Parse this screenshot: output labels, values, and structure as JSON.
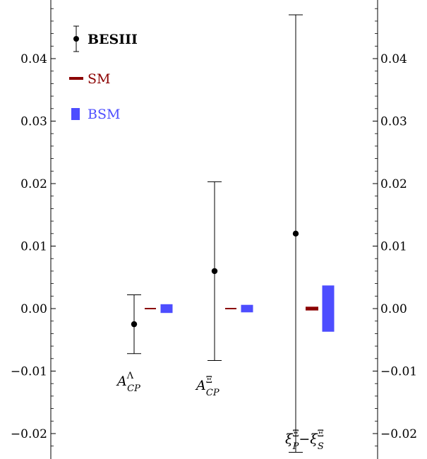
{
  "chart_data": {
    "type": "scatter",
    "ylim": [
      -0.024,
      0.048
    ],
    "yticks": [
      -0.02,
      -0.01,
      0.0,
      0.01,
      0.02,
      0.03,
      0.04
    ],
    "ytick_labels": [
      "−0.02",
      "−0.01",
      "0.00",
      "0.01",
      "0.02",
      "0.03",
      "0.04"
    ],
    "grid": false,
    "legend_position": "top-left",
    "legend": [
      {
        "key": "besiii",
        "label": "BESIII",
        "color": "#000000",
        "marker": "point-with-errorbar"
      },
      {
        "key": "sm",
        "label": "SM",
        "color": "#8b0000",
        "marker": "line"
      },
      {
        "key": "bsm",
        "label": "BSM",
        "color": "#4d4dff",
        "marker": "box"
      }
    ],
    "categories": [
      {
        "key": "acp_lambda",
        "base": "A",
        "sup": "Λ",
        "sub": "CP"
      },
      {
        "key": "acp_xi",
        "base": "A",
        "sup": "Ξ",
        "sub": "CP"
      },
      {
        "key": "xi_diff",
        "base": "ξ",
        "sup": "Ξ",
        "sub": "P",
        "base2": "ξ",
        "sup2": "Ξ",
        "sub2": "S",
        "op": "−"
      }
    ],
    "series": [
      {
        "name": "BESIII",
        "color": "#000000",
        "points": [
          {
            "category": "acp_lambda",
            "y": -0.0025,
            "low": -0.0072,
            "high": 0.0022
          },
          {
            "category": "acp_xi",
            "y": 0.006,
            "low": -0.0083,
            "high": 0.0203
          },
          {
            "category": "xi_diff",
            "y": 0.012,
            "low": -0.023,
            "high": 0.047
          }
        ]
      },
      {
        "name": "SM",
        "color": "#8b0000",
        "points": [
          {
            "category": "acp_lambda",
            "low": -5e-05,
            "high": 5e-05
          },
          {
            "category": "acp_xi",
            "low": -5e-05,
            "high": 5e-05
          },
          {
            "category": "xi_diff",
            "low": -0.0003,
            "high": 0.0003
          }
        ]
      },
      {
        "name": "BSM",
        "color": "#4d4dff",
        "points": [
          {
            "category": "acp_lambda",
            "low": -0.0007,
            "high": 0.0007
          },
          {
            "category": "acp_xi",
            "low": -0.0006,
            "high": 0.0006
          },
          {
            "category": "xi_diff",
            "low": -0.0037,
            "high": 0.0037
          }
        ]
      }
    ]
  }
}
